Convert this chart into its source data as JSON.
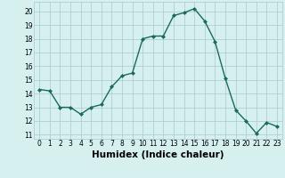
{
  "x": [
    0,
    1,
    2,
    3,
    4,
    5,
    6,
    7,
    8,
    9,
    10,
    11,
    12,
    13,
    14,
    15,
    16,
    17,
    18,
    19,
    20,
    21,
    22,
    23
  ],
  "y": [
    14.3,
    14.2,
    13.0,
    13.0,
    12.5,
    13.0,
    13.2,
    14.5,
    15.3,
    15.5,
    18.0,
    18.2,
    18.2,
    19.7,
    19.9,
    20.2,
    19.3,
    17.8,
    15.1,
    12.8,
    12.0,
    11.1,
    11.9,
    11.6
  ],
  "line_color": "#1a6b5a",
  "marker": "D",
  "markersize": 2.0,
  "linewidth": 1.0,
  "bg_color": "#d6f0f0",
  "grid_color": "#a8c8c8",
  "xlabel": "Humidex (Indice chaleur)",
  "xlim": [
    -0.5,
    23.5
  ],
  "ylim": [
    10.7,
    20.7
  ],
  "yticks": [
    11,
    12,
    13,
    14,
    15,
    16,
    17,
    18,
    19,
    20
  ],
  "xticks": [
    0,
    1,
    2,
    3,
    4,
    5,
    6,
    7,
    8,
    9,
    10,
    11,
    12,
    13,
    14,
    15,
    16,
    17,
    18,
    19,
    20,
    21,
    22,
    23
  ],
  "tick_label_fontsize": 5.5,
  "xlabel_fontsize": 7.5
}
